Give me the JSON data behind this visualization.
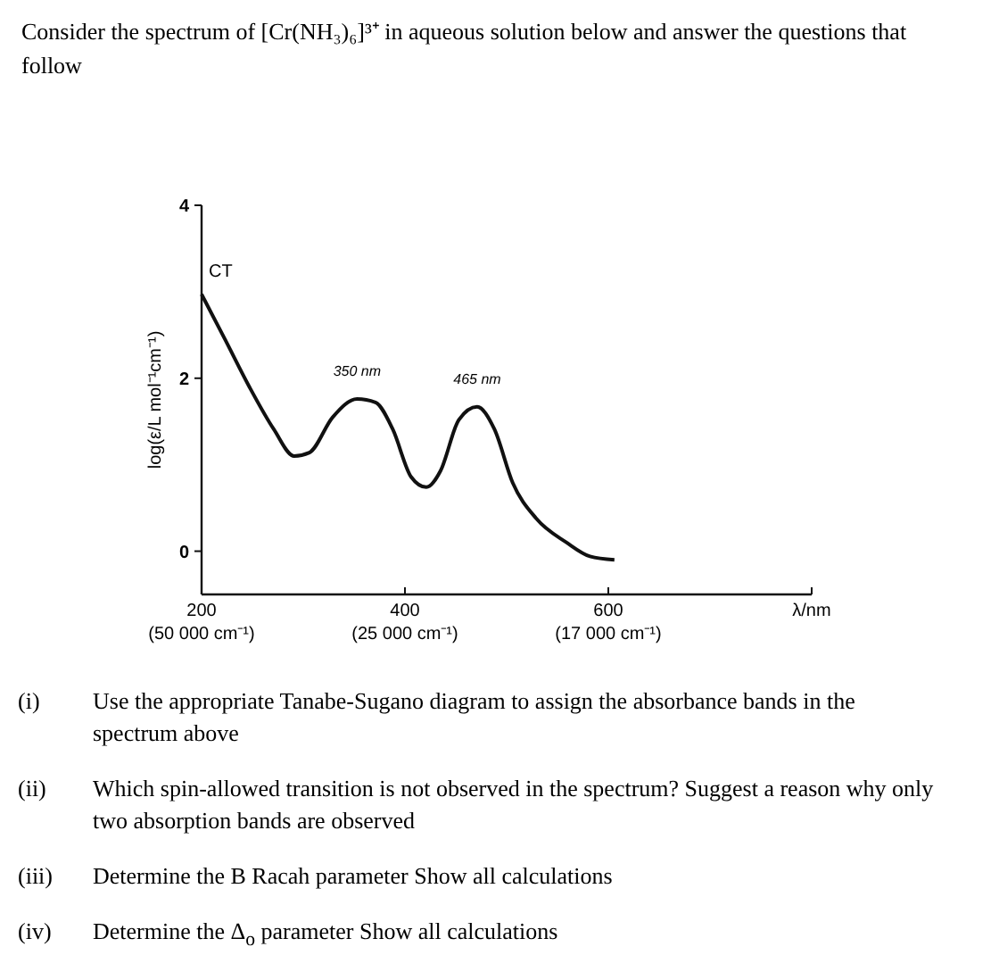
{
  "chart_data": {
    "type": "line",
    "title": "Consider the spectrum of [Cr(NH₃)₆]³⁺ in aqueous solution below and answer the questions that follow",
    "xlabel": "λ/nm",
    "ylabel": "log(ε/L mol⁻¹cm⁻¹)",
    "x": [
      200,
      223,
      247,
      271,
      291,
      306,
      329,
      353,
      371,
      388,
      406,
      421,
      435,
      453,
      471,
      488,
      506,
      529,
      559,
      582,
      606
    ],
    "series": [
      {
        "color": "#111111",
        "values": [
          2.97,
          2.45,
          1.9,
          1.41,
          1.1,
          1.14,
          1.55,
          1.76,
          1.72,
          1.41,
          0.86,
          0.74,
          0.93,
          1.52,
          1.67,
          1.41,
          0.79,
          0.38,
          0.1,
          -0.06,
          -0.1
        ]
      }
    ],
    "xlim": [
      200,
      800
    ],
    "ylim": [
      -0.5,
      4
    ],
    "xticks": [
      200,
      400,
      600,
      {
        "value": 800,
        "label": null
      }
    ],
    "yticks": [
      0,
      2,
      4
    ],
    "grid": false,
    "marker": "none",
    "line_style": "solid",
    "annotations": [
      "(50 000 cm⁻¹)",
      "(25 000 cm⁻¹)",
      "(17 000 cm⁻¹)",
      {
        "text": "CT",
        "x": 200,
        "y": 2.97
      },
      {
        "text": "350 nm",
        "x": 353,
        "y": 1.76
      },
      {
        "text": "465 nm",
        "x": 471,
        "y": 1.67
      },
      "(i) Use the appropriate Tanabe-Sugano diagram to assign the absorbance bands in the spectrum above",
      "(ii) Which spin-allowed transition is not observed in the spectrum? Suggest a reason why only two absorption bands are observed",
      "(iii) Determine the B Racah parameter  Show all calculations",
      "(iv) Determine the Δ$_{o}$ parameter  Show all calculations"
    ]
  }
}
